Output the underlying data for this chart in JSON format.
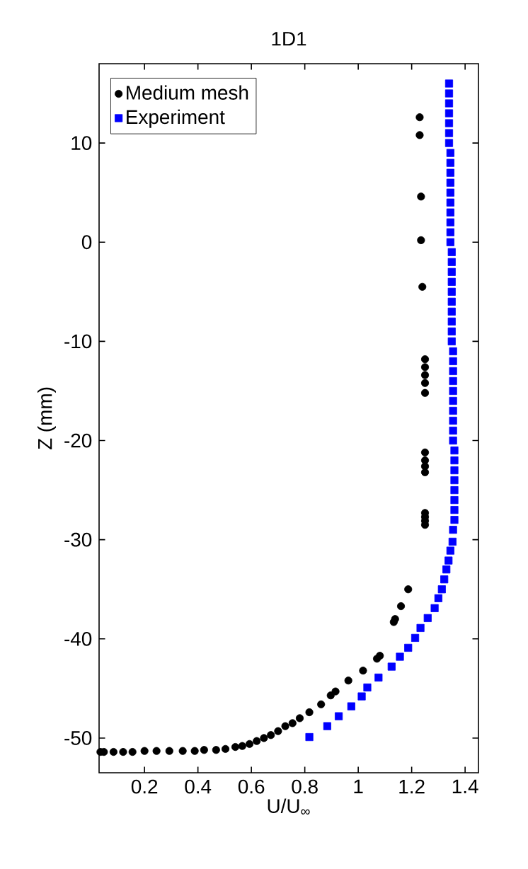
{
  "chart_data": {
    "type": "scatter",
    "title": "1D1",
    "xlabel": "U/U$_{∞}$",
    "ylabel": "Z (mm)",
    "xlim": [
      0.03,
      1.45
    ],
    "ylim": [
      -53.5,
      18
    ],
    "xticks": [
      0.2,
      0.4,
      0.6,
      0.8,
      1,
      1.2,
      1.4
    ],
    "yticks": [
      -50,
      -40,
      -30,
      -20,
      -10,
      0,
      10
    ],
    "legend": "top left",
    "grid": false,
    "series": [
      {
        "name": "Medium mesh",
        "color": "#000000",
        "marker": "circle",
        "x": [
          1.23,
          1.23,
          1.235,
          1.235,
          1.24,
          1.25,
          1.25,
          1.25,
          1.25,
          1.25,
          1.25,
          1.25,
          1.25,
          1.25,
          1.25,
          1.25,
          1.25,
          1.25,
          1.187,
          1.16,
          1.138,
          1.133,
          1.081,
          1.07,
          1.018,
          0.963,
          0.915,
          0.897,
          0.861,
          0.817,
          0.781,
          0.754,
          0.727,
          0.7,
          0.673,
          0.647,
          0.62,
          0.593,
          0.566,
          0.54,
          0.503,
          0.468,
          0.423,
          0.388,
          0.343,
          0.293,
          0.245,
          0.2,
          0.155,
          0.12,
          0.084,
          0.048,
          0.035
        ],
        "values": [
          12.6,
          10.8,
          4.6,
          0.2,
          -4.5,
          -11.8,
          -12.6,
          -13.4,
          -14.2,
          -15.2,
          -21.2,
          -22.0,
          -22.6,
          -23.2,
          -27.3,
          -27.7,
          -28.1,
          -28.5,
          -35.0,
          -36.7,
          -38.0,
          -38.3,
          -41.7,
          -42.0,
          -43.2,
          -44.2,
          -45.3,
          -45.7,
          -46.6,
          -47.4,
          -48.0,
          -48.5,
          -48.8,
          -49.3,
          -49.7,
          -50.0,
          -50.3,
          -50.6,
          -50.8,
          -50.9,
          -51.1,
          -51.2,
          -51.2,
          -51.3,
          -51.3,
          -51.3,
          -51.3,
          -51.3,
          -51.4,
          -51.4,
          -51.4,
          -51.4,
          -51.4
        ]
      },
      {
        "name": "Experiment",
        "color": "#0000ff",
        "marker": "square",
        "x": [
          0.817,
          0.884,
          0.927,
          0.974,
          1.013,
          1.034,
          1.076,
          1.125,
          1.156,
          1.187,
          1.213,
          1.233,
          1.26,
          1.286,
          1.3,
          1.313,
          1.322,
          1.33,
          1.338,
          1.345,
          1.353,
          1.355,
          1.36,
          1.36,
          1.36,
          1.36,
          1.36,
          1.36,
          1.36,
          1.36,
          1.355,
          1.355,
          1.355,
          1.355,
          1.355,
          1.355,
          1.355,
          1.355,
          1.355,
          1.355,
          1.35,
          1.35,
          1.35,
          1.35,
          1.35,
          1.35,
          1.35,
          1.35,
          1.35,
          1.35,
          1.345,
          1.345,
          1.345,
          1.345,
          1.345,
          1.345,
          1.345,
          1.345,
          1.345,
          1.345,
          1.34,
          1.34,
          1.34,
          1.34,
          1.34,
          1.34,
          1.34
        ],
        "values": [
          -49.9,
          -48.8,
          -47.8,
          -46.8,
          -45.8,
          -44.9,
          -43.9,
          -42.8,
          -41.8,
          -40.9,
          -39.9,
          -38.9,
          -37.9,
          -36.9,
          -35.9,
          -35.0,
          -34.0,
          -33.0,
          -32.1,
          -31.1,
          -30.2,
          -29,
          -28,
          -27,
          -26,
          -25,
          -24,
          -23,
          -22,
          -21,
          -20,
          -19,
          -18,
          -17,
          -16,
          -15,
          -14,
          -13,
          -12,
          -11,
          -10,
          -9,
          -8,
          -7,
          -6,
          -5,
          -4,
          -3,
          -2,
          -1,
          0,
          1,
          2,
          3,
          4,
          5,
          6,
          7,
          8,
          9,
          10,
          11,
          12,
          13,
          14,
          15,
          16
        ]
      }
    ]
  }
}
